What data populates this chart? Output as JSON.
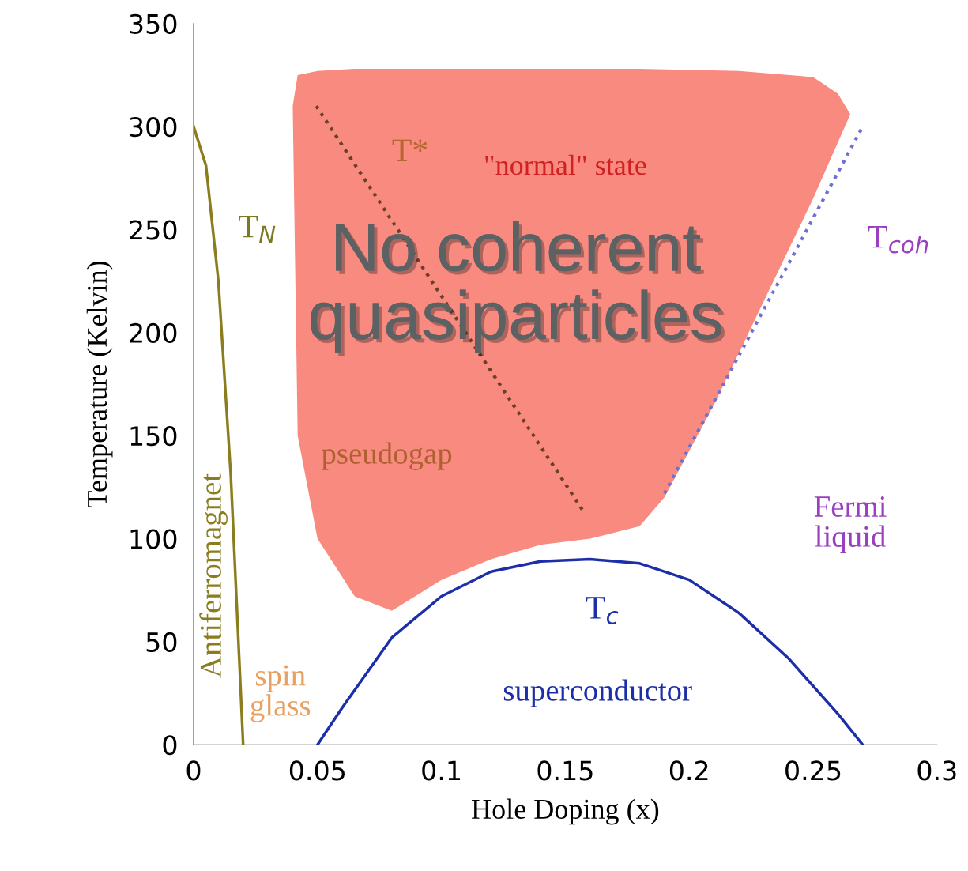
{
  "chart_data": {
    "type": "line",
    "xlabel": "Hole Doping (x)",
    "ylabel": "Temperature (Kelvin)",
    "xlim": [
      0,
      0.3
    ],
    "xticks": [
      0,
      0.05,
      0.1,
      0.15,
      0.2,
      0.25,
      0.3
    ],
    "ylim": [
      0,
      350
    ],
    "yticks": [
      0,
      50,
      100,
      150,
      200,
      250,
      300,
      350
    ],
    "grid": false,
    "marker": "none",
    "series": [
      {
        "type": "area",
        "color": "#f98a80",
        "x": [
          0.04,
          0.042,
          0.05,
          0.065,
          0.1,
          0.14,
          0.18,
          0.22,
          0.25,
          0.26,
          0.265,
          0.25,
          0.23,
          0.21,
          0.19,
          0.18,
          0.16,
          0.14,
          0.12,
          0.1,
          0.08,
          0.065,
          0.05,
          0.042
        ],
        "values": [
          310,
          325,
          327,
          328,
          328,
          328,
          328,
          327,
          324,
          316,
          306,
          265,
          215,
          165,
          120,
          106,
          100,
          97,
          90,
          80,
          65,
          72,
          100,
          150
        ]
      },
      {
        "color": "#8b7d1e",
        "line_style": "solid",
        "x": [
          0,
          0.005,
          0.01,
          0.015,
          0.02
        ],
        "values": [
          300,
          281,
          225,
          131,
          0
        ]
      },
      {
        "color": "#1c2fa8",
        "line_style": "solid",
        "x": [
          0.05,
          0.06,
          0.08,
          0.1,
          0.12,
          0.14,
          0.16,
          0.18,
          0.2,
          0.22,
          0.24,
          0.26,
          0.27
        ],
        "values": [
          0,
          18,
          52,
          72,
          84,
          89,
          90,
          88,
          80,
          64,
          42,
          15,
          0
        ]
      },
      {
        "color": "#6b3f2a",
        "line_style": "dotted",
        "x": [
          0.0495,
          0.158
        ],
        "values": [
          310,
          112
        ]
      },
      {
        "color": "#7070d0",
        "line_style": "dotted",
        "x": [
          0.19,
          0.27
        ],
        "values": [
          122,
          300
        ]
      }
    ],
    "annotations": [
      "T*",
      "T$_{N}$",
      "\"normal\" state",
      "No coherent quasiparticles",
      "T$_{coh}$",
      "pseudogap",
      "Fermi liquid",
      "Antiferromagnet",
      "spin glass",
      "superconductor",
      "T$_{c}$"
    ]
  }
}
